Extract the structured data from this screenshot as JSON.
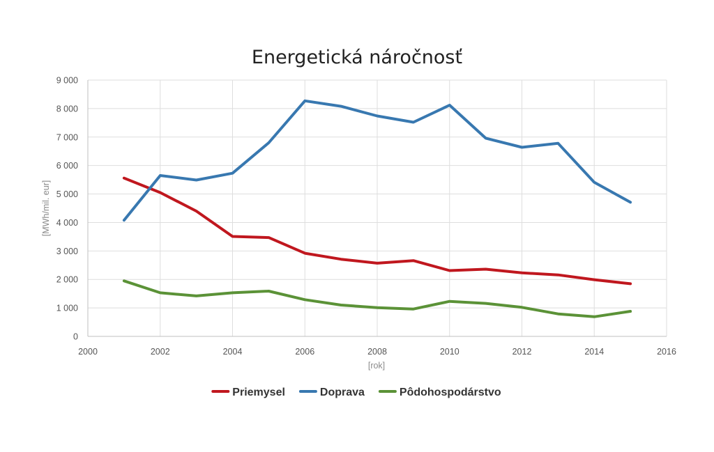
{
  "chart_data": {
    "type": "line",
    "title": "Energetická náročnosť",
    "xlabel": "[rok]",
    "ylabel": "[MWh/mil. eur]",
    "xlim": [
      2000,
      2016
    ],
    "ylim": [
      0,
      9000
    ],
    "x_ticks": [
      2000,
      2002,
      2004,
      2006,
      2008,
      2010,
      2012,
      2014,
      2016
    ],
    "y_ticks": [
      0,
      1000,
      2000,
      3000,
      4000,
      5000,
      6000,
      7000,
      8000,
      9000
    ],
    "x_tick_labels": [
      "2000",
      "2002",
      "2004",
      "2006",
      "2008",
      "2010",
      "2012",
      "2014",
      "2016"
    ],
    "y_tick_labels": [
      "0",
      "1 000",
      "2 000",
      "3 000",
      "4 000",
      "5 000",
      "6 000",
      "7 000",
      "8 000",
      "9 000"
    ],
    "grid": true,
    "legend_position": "bottom",
    "x": [
      2001,
      2002,
      2003,
      2004,
      2005,
      2006,
      2007,
      2008,
      2009,
      2010,
      2011,
      2012,
      2013,
      2014,
      2015
    ],
    "series": [
      {
        "name": "Priemysel",
        "color": "#c0171e",
        "values": [
          5560,
          5050,
          4400,
          3510,
          3470,
          2920,
          2710,
          2570,
          2660,
          2310,
          2360,
          2230,
          2160,
          1990,
          1850
        ]
      },
      {
        "name": "Doprava",
        "color": "#3878b0",
        "values": [
          4080,
          5650,
          5490,
          5730,
          6800,
          8270,
          8080,
          7740,
          7520,
          8120,
          6960,
          6640,
          6780,
          5410,
          4710
        ]
      },
      {
        "name": "Pôdohospodárstvo",
        "color": "#5b9237",
        "values": [
          1950,
          1530,
          1420,
          1530,
          1590,
          1290,
          1100,
          1010,
          960,
          1230,
          1160,
          1020,
          790,
          690,
          880
        ]
      }
    ]
  }
}
